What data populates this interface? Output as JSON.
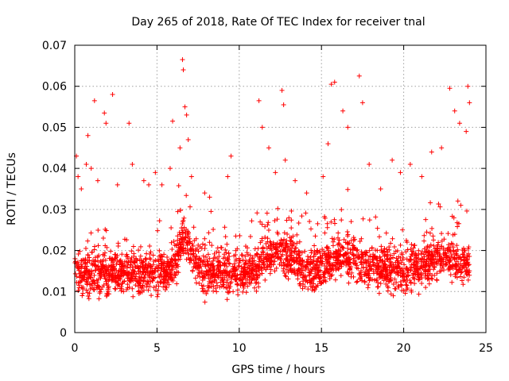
{
  "chart_data": {
    "type": "scatter",
    "title": "Day 265 of 2018, Rate Of TEC Index for receiver tnal",
    "xlabel": "GPS time / hours",
    "ylabel": "ROTI / TECUs",
    "xlim": [
      0,
      25
    ],
    "ylim": [
      0,
      0.07
    ],
    "grid": true,
    "marker": "+",
    "series_color": "#ff0000",
    "x_ticks": [
      0,
      5,
      10,
      15,
      20,
      25
    ],
    "x_tick_labels": [
      "0",
      "5",
      "10",
      "15",
      "20",
      "25"
    ],
    "y_ticks": [
      0,
      0.01,
      0.02,
      0.03,
      0.04,
      0.05,
      0.06,
      0.07
    ],
    "y_tick_labels": [
      "0",
      "0.01",
      "0.02",
      "0.03",
      "0.04",
      "0.05",
      "0.06",
      "0.07"
    ],
    "series": [
      {
        "name": "ROTI",
        "description": "dense scatter of ROTI samples over 0-24 h; most values 0.005-0.025 TECU/min",
        "points": [
          [
            0.1,
            0.043
          ],
          [
            0.2,
            0.038
          ],
          [
            0.4,
            0.035
          ],
          [
            0.7,
            0.041
          ],
          [
            0.8,
            0.048
          ],
          [
            1.0,
            0.04
          ],
          [
            1.2,
            0.0565
          ],
          [
            1.4,
            0.037
          ],
          [
            1.8,
            0.0535
          ],
          [
            1.9,
            0.051
          ],
          [
            2.3,
            0.058
          ],
          [
            2.6,
            0.036
          ],
          [
            3.3,
            0.051
          ],
          [
            3.5,
            0.041
          ],
          [
            4.2,
            0.037
          ],
          [
            4.5,
            0.036
          ],
          [
            4.9,
            0.039
          ],
          [
            5.3,
            0.036
          ],
          [
            5.8,
            0.04
          ],
          [
            5.95,
            0.0515
          ],
          [
            6.4,
            0.045
          ],
          [
            6.55,
            0.0665
          ],
          [
            6.6,
            0.064
          ],
          [
            6.7,
            0.055
          ],
          [
            6.8,
            0.053
          ],
          [
            6.9,
            0.047
          ],
          [
            7.1,
            0.038
          ],
          [
            7.9,
            0.034
          ],
          [
            8.2,
            0.033
          ],
          [
            9.3,
            0.038
          ],
          [
            9.5,
            0.043
          ],
          [
            11.2,
            0.0565
          ],
          [
            11.4,
            0.05
          ],
          [
            11.8,
            0.045
          ],
          [
            12.2,
            0.039
          ],
          [
            12.6,
            0.059
          ],
          [
            12.7,
            0.0555
          ],
          [
            12.8,
            0.042
          ],
          [
            13.4,
            0.037
          ],
          [
            14.1,
            0.034
          ],
          [
            15.1,
            0.038
          ],
          [
            15.4,
            0.046
          ],
          [
            15.6,
            0.0605
          ],
          [
            15.8,
            0.061
          ],
          [
            16.3,
            0.054
          ],
          [
            16.6,
            0.05
          ],
          [
            17.3,
            0.0625
          ],
          [
            17.5,
            0.056
          ],
          [
            17.9,
            0.041
          ],
          [
            18.6,
            0.035
          ],
          [
            19.3,
            0.042
          ],
          [
            19.8,
            0.039
          ],
          [
            20.4,
            0.041
          ],
          [
            21.1,
            0.038
          ],
          [
            21.7,
            0.044
          ],
          [
            22.3,
            0.045
          ],
          [
            22.8,
            0.0595
          ],
          [
            23.1,
            0.054
          ],
          [
            23.4,
            0.051
          ],
          [
            23.8,
            0.049
          ],
          [
            23.9,
            0.06
          ],
          [
            24.0,
            0.056
          ]
        ]
      }
    ]
  }
}
